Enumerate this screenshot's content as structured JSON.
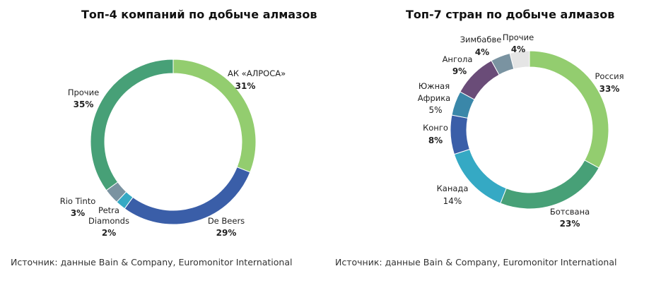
{
  "chart_data": [
    {
      "type": "pie",
      "subtype": "donut",
      "title": "Топ-4 компаний по добыче алмазов",
      "source": "Источник: данные Bain & Company, Euromonitor International",
      "slices": [
        {
          "name": "АК «АЛРОСА»",
          "value": 31,
          "label": "31%",
          "color": "#93cd6f"
        },
        {
          "name": "De Beers",
          "value": 29,
          "label": "29%",
          "color": "#3a5ea8"
        },
        {
          "name": "Petra Diamonds",
          "value": 2,
          "label": "2%",
          "color": "#35a9c4"
        },
        {
          "name": "Rio Tinto",
          "value": 3,
          "label": "3%",
          "color": "#7a93a1"
        },
        {
          "name": "Прочие",
          "value": 35,
          "label": "35%",
          "color": "#47a077"
        }
      ]
    },
    {
      "type": "pie",
      "subtype": "donut",
      "title": "Топ-7 стран по добыче алмазов",
      "source": "Источник: данные Bain & Company, Euromonitor International",
      "slices": [
        {
          "name": "Россия",
          "value": 33,
          "label": "33%",
          "color": "#93cd6f"
        },
        {
          "name": "Ботсвана",
          "value": 23,
          "label": "23%",
          "color": "#47a077"
        },
        {
          "name": "Канада",
          "value": 14,
          "label": "14%",
          "color": "#35a9c4"
        },
        {
          "name": "Конго",
          "value": 8,
          "label": "8%",
          "color": "#3a5ea8"
        },
        {
          "name": "Южная Африка",
          "value": 5,
          "label": "5%",
          "color": "#3a87a9"
        },
        {
          "name": "Ангола",
          "value": 9,
          "label": "9%",
          "color": "#6a4c78"
        },
        {
          "name": "Зимбабве",
          "value": 4,
          "label": "4%",
          "color": "#7a93a1"
        },
        {
          "name": "Прочие",
          "value": 4,
          "label": "4%",
          "color": "#e5e5e5"
        }
      ]
    }
  ]
}
